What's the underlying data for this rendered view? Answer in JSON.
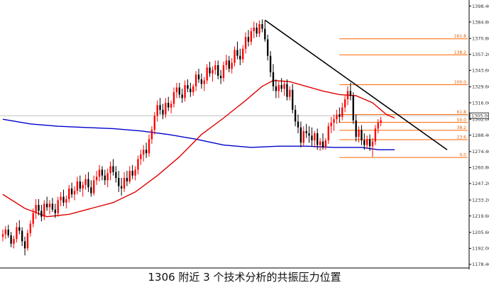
{
  "caption": "1306 附近 3 个技术分析的共振压力位置",
  "colors": {
    "bull": "#ff0000",
    "bear": "#000000",
    "ma_fast": "#e00000",
    "ma_slow": "#0000cc",
    "fib": "#ff6600",
    "trendline": "#000000",
    "price_line": "#c0c0c0"
  },
  "chart_data": {
    "type": "candlestick",
    "title": "",
    "ylim": [
      1176.5,
      1397.5
    ],
    "y_ticks": [
      "1398.40",
      "1384.80",
      "1370.80",
      "1357.20",
      "1343.60",
      "1329.60",
      "1316.00",
      "1302.00",
      "1288.40",
      "1274.40",
      "1260.80",
      "1247.20",
      "1233.20",
      "1219.60",
      "1205.60",
      "1192.00",
      "1178.40"
    ],
    "current_price": "1305.00",
    "fibonacci": [
      {
        "label": "161.8",
        "price": 1370.5
      },
      {
        "label": "138.2",
        "price": 1356.8
      },
      {
        "label": "100.0",
        "price": 1331.4
      },
      {
        "label": "61.8",
        "price": 1306.0
      },
      {
        "label": "50.0",
        "price": 1299.4
      },
      {
        "label": "38.2",
        "price": 1292.6
      },
      {
        "label": "23.6",
        "price": 1284.6
      },
      {
        "label": "0.0",
        "price": 1269.4
      }
    ],
    "trendline": {
      "start": {
        "bar": 95,
        "price": 1386.4
      },
      "end": {
        "bar": 161,
        "price": 1276.0
      }
    },
    "candles": [
      [
        1202,
        1208,
        1198,
        1204
      ],
      [
        1204,
        1211,
        1200,
        1208
      ],
      [
        1208,
        1212,
        1201,
        1203
      ],
      [
        1203,
        1206,
        1193,
        1196
      ],
      [
        1196,
        1203,
        1192,
        1200
      ],
      [
        1200,
        1214,
        1197,
        1210
      ],
      [
        1210,
        1216,
        1204,
        1207
      ],
      [
        1207,
        1210,
        1194,
        1198
      ],
      [
        1198,
        1202,
        1186,
        1192
      ],
      [
        1192,
        1208,
        1190,
        1205
      ],
      [
        1205,
        1216,
        1202,
        1213
      ],
      [
        1213,
        1226,
        1210,
        1222
      ],
      [
        1222,
        1234,
        1217,
        1229
      ],
      [
        1229,
        1234,
        1220,
        1224
      ],
      [
        1224,
        1229,
        1215,
        1219
      ],
      [
        1219,
        1233,
        1216,
        1230
      ],
      [
        1230,
        1236,
        1224,
        1227
      ],
      [
        1227,
        1233,
        1221,
        1230
      ],
      [
        1230,
        1235,
        1223,
        1225
      ],
      [
        1225,
        1230,
        1218,
        1222
      ],
      [
        1222,
        1236,
        1219,
        1233
      ],
      [
        1233,
        1240,
        1228,
        1236
      ],
      [
        1236,
        1242,
        1228,
        1231
      ],
      [
        1231,
        1237,
        1226,
        1234
      ],
      [
        1234,
        1246,
        1231,
        1243
      ],
      [
        1243,
        1248,
        1235,
        1238
      ],
      [
        1238,
        1245,
        1233,
        1241
      ],
      [
        1241,
        1253,
        1238,
        1249
      ],
      [
        1249,
        1254,
        1240,
        1243
      ],
      [
        1243,
        1249,
        1236,
        1246
      ],
      [
        1246,
        1255,
        1242,
        1251
      ],
      [
        1251,
        1257,
        1240,
        1244
      ],
      [
        1244,
        1250,
        1236,
        1239
      ],
      [
        1239,
        1254,
        1237,
        1250
      ],
      [
        1250,
        1258,
        1246,
        1253
      ],
      [
        1253,
        1263,
        1249,
        1259
      ],
      [
        1259,
        1262,
        1250,
        1254
      ],
      [
        1254,
        1259,
        1246,
        1250
      ],
      [
        1250,
        1260,
        1244,
        1256
      ],
      [
        1256,
        1266,
        1250,
        1262
      ],
      [
        1262,
        1268,
        1254,
        1257
      ],
      [
        1257,
        1262,
        1248,
        1252
      ],
      [
        1252,
        1258,
        1240,
        1245
      ],
      [
        1245,
        1252,
        1237,
        1243
      ],
      [
        1243,
        1257,
        1240,
        1252
      ],
      [
        1252,
        1258,
        1245,
        1249
      ],
      [
        1249,
        1262,
        1247,
        1258
      ],
      [
        1258,
        1263,
        1251,
        1254
      ],
      [
        1254,
        1262,
        1250,
        1259
      ],
      [
        1259,
        1271,
        1255,
        1268
      ],
      [
        1268,
        1276,
        1263,
        1272
      ],
      [
        1272,
        1280,
        1266,
        1276
      ],
      [
        1276,
        1282,
        1269,
        1273
      ],
      [
        1273,
        1289,
        1270,
        1285
      ],
      [
        1285,
        1296,
        1281,
        1293
      ],
      [
        1293,
        1308,
        1289,
        1305
      ],
      [
        1305,
        1318,
        1300,
        1314
      ],
      [
        1314,
        1320,
        1306,
        1310
      ],
      [
        1310,
        1315,
        1302,
        1306
      ],
      [
        1306,
        1320,
        1303,
        1316
      ],
      [
        1316,
        1321,
        1309,
        1312
      ],
      [
        1312,
        1318,
        1307,
        1315
      ],
      [
        1315,
        1329,
        1312,
        1325
      ],
      [
        1325,
        1333,
        1320,
        1329
      ],
      [
        1329,
        1333,
        1320,
        1323
      ],
      [
        1323,
        1328,
        1316,
        1320
      ],
      [
        1320,
        1335,
        1317,
        1331
      ],
      [
        1331,
        1336,
        1325,
        1328
      ],
      [
        1328,
        1333,
        1321,
        1325
      ],
      [
        1325,
        1332,
        1322,
        1330
      ],
      [
        1330,
        1343,
        1326,
        1340
      ],
      [
        1340,
        1345,
        1333,
        1336
      ],
      [
        1336,
        1341,
        1328,
        1332
      ],
      [
        1332,
        1338,
        1326,
        1335
      ],
      [
        1335,
        1349,
        1332,
        1346
      ],
      [
        1346,
        1351,
        1338,
        1341
      ],
      [
        1341,
        1347,
        1334,
        1344
      ],
      [
        1344,
        1352,
        1340,
        1348
      ],
      [
        1348,
        1352,
        1336,
        1339
      ],
      [
        1339,
        1344,
        1332,
        1337
      ],
      [
        1337,
        1351,
        1334,
        1348
      ],
      [
        1348,
        1357,
        1344,
        1352
      ],
      [
        1352,
        1356,
        1342,
        1345
      ],
      [
        1345,
        1354,
        1341,
        1350
      ],
      [
        1350,
        1364,
        1347,
        1361
      ],
      [
        1361,
        1368,
        1353,
        1356
      ],
      [
        1356,
        1362,
        1348,
        1353
      ],
      [
        1353,
        1365,
        1350,
        1362
      ],
      [
        1362,
        1376,
        1358,
        1372
      ],
      [
        1372,
        1378,
        1364,
        1368
      ],
      [
        1368,
        1380,
        1365,
        1377
      ],
      [
        1377,
        1385,
        1371,
        1380
      ],
      [
        1380,
        1384,
        1372,
        1375
      ],
      [
        1375,
        1386,
        1372,
        1383
      ],
      [
        1383,
        1387,
        1376,
        1379
      ],
      [
        1379,
        1386,
        1368,
        1370
      ],
      [
        1370,
        1374,
        1352,
        1356
      ],
      [
        1356,
        1360,
        1338,
        1342
      ],
      [
        1342,
        1349,
        1326,
        1330
      ],
      [
        1330,
        1336,
        1320,
        1326
      ],
      [
        1326,
        1334,
        1320,
        1331
      ],
      [
        1331,
        1337,
        1325,
        1328
      ],
      [
        1328,
        1335,
        1322,
        1332
      ],
      [
        1332,
        1336,
        1318,
        1321
      ],
      [
        1321,
        1330,
        1318,
        1327
      ],
      [
        1327,
        1332,
        1307,
        1310
      ],
      [
        1310,
        1314,
        1296,
        1300
      ],
      [
        1300,
        1306,
        1290,
        1295
      ],
      [
        1295,
        1300,
        1278,
        1282
      ],
      [
        1282,
        1296,
        1279,
        1292
      ],
      [
        1292,
        1298,
        1286,
        1290
      ],
      [
        1290,
        1296,
        1282,
        1288
      ],
      [
        1288,
        1295,
        1279,
        1284
      ],
      [
        1284,
        1292,
        1278,
        1290
      ],
      [
        1290,
        1294,
        1276,
        1280
      ],
      [
        1280,
        1286,
        1275,
        1283
      ],
      [
        1283,
        1290,
        1276,
        1278
      ],
      [
        1278,
        1286,
        1276,
        1284
      ],
      [
        1284,
        1299,
        1281,
        1296
      ],
      [
        1296,
        1304,
        1290,
        1299
      ],
      [
        1299,
        1306,
        1292,
        1302
      ],
      [
        1302,
        1310,
        1298,
        1306
      ],
      [
        1306,
        1312,
        1299,
        1304
      ],
      [
        1304,
        1316,
        1301,
        1312
      ],
      [
        1312,
        1322,
        1308,
        1319
      ],
      [
        1319,
        1330,
        1314,
        1326
      ],
      [
        1326,
        1333,
        1318,
        1322
      ],
      [
        1322,
        1325,
        1298,
        1301
      ],
      [
        1301,
        1306,
        1283,
        1287
      ],
      [
        1287,
        1296,
        1282,
        1293
      ],
      [
        1293,
        1297,
        1280,
        1284
      ],
      [
        1284,
        1290,
        1276,
        1280
      ],
      [
        1280,
        1288,
        1277,
        1285
      ],
      [
        1285,
        1289,
        1275,
        1279
      ],
      [
        1279,
        1286,
        1270,
        1283
      ],
      [
        1283,
        1297,
        1280,
        1294
      ],
      [
        1294,
        1302,
        1290,
        1299
      ],
      [
        1299,
        1304,
        1296,
        1301
      ]
    ],
    "ma_fast": [
      {
        "bar": 0,
        "price": 1238
      },
      {
        "bar": 8,
        "price": 1226
      },
      {
        "bar": 16,
        "price": 1219
      },
      {
        "bar": 24,
        "price": 1221
      },
      {
        "bar": 32,
        "price": 1226
      },
      {
        "bar": 40,
        "price": 1231
      },
      {
        "bar": 48,
        "price": 1240
      },
      {
        "bar": 56,
        "price": 1254
      },
      {
        "bar": 64,
        "price": 1270
      },
      {
        "bar": 72,
        "price": 1289
      },
      {
        "bar": 80,
        "price": 1303
      },
      {
        "bar": 88,
        "price": 1318
      },
      {
        "bar": 94,
        "price": 1330
      },
      {
        "bar": 98,
        "price": 1335
      },
      {
        "bar": 104,
        "price": 1334
      },
      {
        "bar": 110,
        "price": 1330
      },
      {
        "bar": 116,
        "price": 1326
      },
      {
        "bar": 122,
        "price": 1323
      },
      {
        "bar": 128,
        "price": 1322
      },
      {
        "bar": 134,
        "price": 1316
      },
      {
        "bar": 139,
        "price": 1306
      },
      {
        "bar": 142,
        "price": 1303
      }
    ],
    "ma_slow": [
      {
        "bar": 0,
        "price": 1302
      },
      {
        "bar": 10,
        "price": 1298
      },
      {
        "bar": 20,
        "price": 1296
      },
      {
        "bar": 30,
        "price": 1295
      },
      {
        "bar": 40,
        "price": 1294
      },
      {
        "bar": 50,
        "price": 1292
      },
      {
        "bar": 60,
        "price": 1289
      },
      {
        "bar": 70,
        "price": 1285
      },
      {
        "bar": 80,
        "price": 1280
      },
      {
        "bar": 90,
        "price": 1278
      },
      {
        "bar": 100,
        "price": 1279
      },
      {
        "bar": 110,
        "price": 1279
      },
      {
        "bar": 120,
        "price": 1278
      },
      {
        "bar": 130,
        "price": 1278
      },
      {
        "bar": 136,
        "price": 1276
      },
      {
        "bar": 142,
        "price": 1276
      }
    ]
  }
}
